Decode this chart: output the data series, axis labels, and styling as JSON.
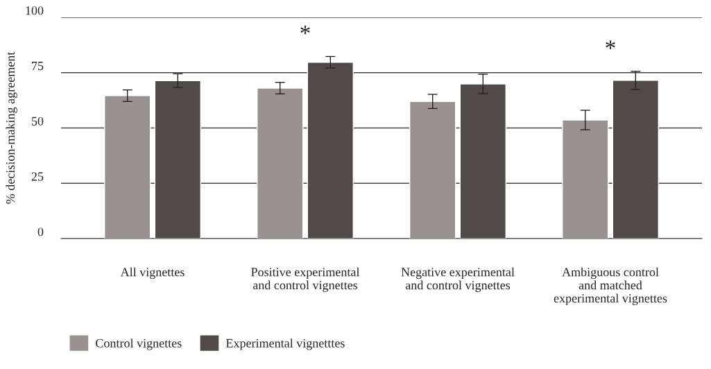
{
  "chart_data": {
    "type": "bar",
    "ylabel": "% decision-making agreement",
    "categories": [
      "All vignettes",
      "Positive experimental\nand control vignettes",
      "Negative experimental\nand control vignettes",
      "Ambiguous control\nand matched\nexperimental vignettes"
    ],
    "series": [
      {
        "name": "Control vignettes",
        "color": "#9a9190",
        "values": [
          64.6,
          68.0,
          62.0,
          53.6
        ],
        "errors": [
          2.6,
          2.6,
          3.2,
          4.4
        ]
      },
      {
        "name": "Experimental vignetttes",
        "color": "#524a48",
        "values": [
          71.4,
          79.7,
          69.9,
          71.5
        ],
        "errors": [
          3.1,
          2.6,
          4.4,
          4.1
        ]
      }
    ],
    "annotations": [
      "*",
      "*"
    ],
    "ylim": [
      0,
      100
    ],
    "yticks": [
      0,
      25,
      50,
      75,
      100
    ],
    "grid": "y",
    "legend": "bottom left"
  }
}
